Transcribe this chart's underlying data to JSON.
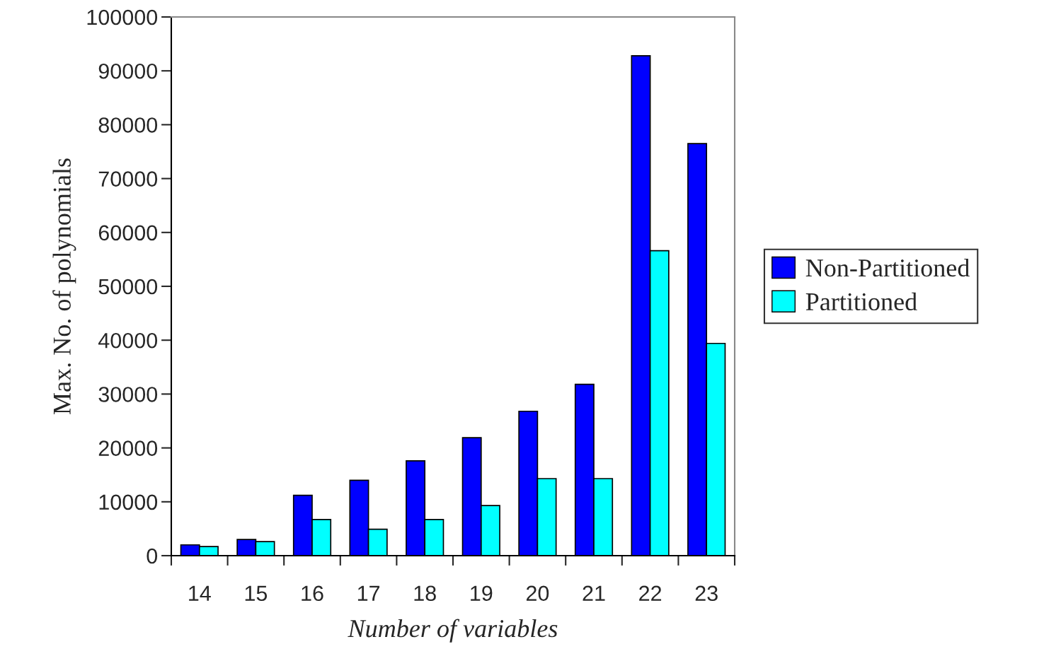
{
  "chart_data": {
    "type": "bar",
    "xlabel": "Number of variables",
    "ylabel": "Max. No. of polynomials",
    "categories": [
      "14",
      "15",
      "16",
      "17",
      "18",
      "19",
      "20",
      "21",
      "22",
      "23"
    ],
    "series": [
      {
        "name": "Non-Partitioned",
        "color": "#0000ff",
        "values": [
          2000,
          3000,
          11200,
          14000,
          17600,
          21900,
          26800,
          31800,
          92800,
          76500
        ]
      },
      {
        "name": "Partitioned",
        "color": "#00ffff",
        "values": [
          1700,
          2600,
          6700,
          4900,
          6700,
          9300,
          14300,
          14300,
          56600,
          39400
        ]
      }
    ],
    "ylim": [
      0,
      100000
    ],
    "yticks": [
      0,
      10000,
      20000,
      30000,
      40000,
      50000,
      60000,
      70000,
      80000,
      90000,
      100000
    ],
    "grid": false,
    "legend": "right"
  }
}
